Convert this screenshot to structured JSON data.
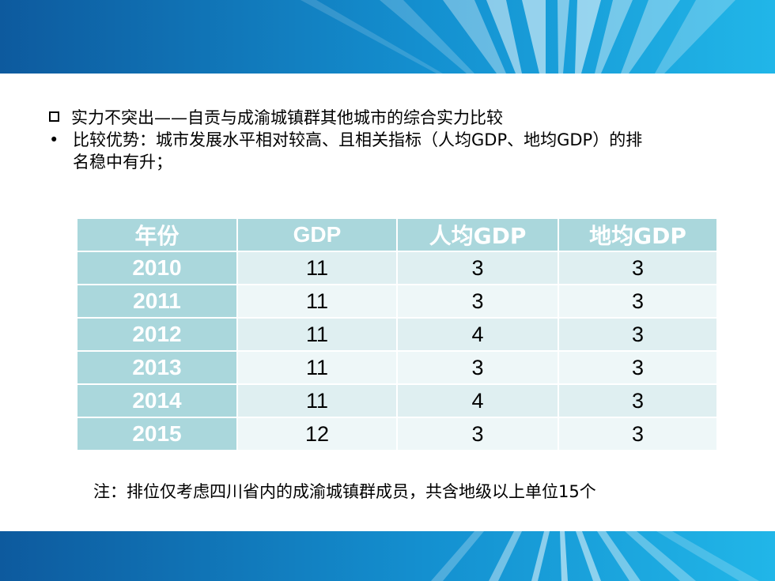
{
  "colors": {
    "accent": "#aad7dc",
    "banner_dark": "#0b5fa3",
    "banner_light": "#1aaee0"
  },
  "heading": "实力不突出——自贡与成渝城镇群其他城市的综合实力比较",
  "bullet": {
    "marker": "•",
    "line1": "比较优势：城市发展水平相对较高、且相关指标（人均GDP、地均GDP）的排",
    "line2": "名稳中有升；"
  },
  "table": {
    "headers": [
      "年份",
      "GDP",
      "人均GDP",
      "地均GDP"
    ],
    "rows": [
      {
        "year": "2010",
        "gdp": "11",
        "gdp_per_capita": "3",
        "gdp_per_area": "3"
      },
      {
        "year": "2011",
        "gdp": "11",
        "gdp_per_capita": "3",
        "gdp_per_area": "3"
      },
      {
        "year": "2012",
        "gdp": "11",
        "gdp_per_capita": "4",
        "gdp_per_area": "3"
      },
      {
        "year": "2013",
        "gdp": "11",
        "gdp_per_capita": "3",
        "gdp_per_area": "3"
      },
      {
        "year": "2014",
        "gdp": "11",
        "gdp_per_capita": "4",
        "gdp_per_area": "3"
      },
      {
        "year": "2015",
        "gdp": "12",
        "gdp_per_capita": "3",
        "gdp_per_area": "3"
      }
    ]
  },
  "note": "注：排位仅考虑四川省内的成渝城镇群成员，共含地级以上单位15个"
}
